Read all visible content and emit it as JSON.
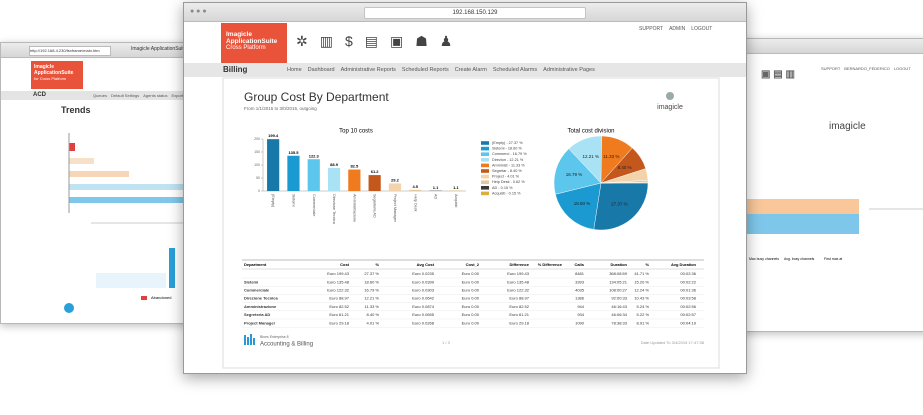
{
  "left_window": {
    "url": "http://192.168.4.230/fsxframe/main.htm",
    "tab": "Imagicle ApplicationSuite",
    "brand": "Imagicle ApplicationSuite",
    "brand_sub": "for Cross Platform",
    "section": "ACD",
    "nav": [
      "Queues",
      "Default Settings",
      "Agents status",
      "Exports"
    ],
    "title": "Trends",
    "legend": [
      "Abandoned"
    ]
  },
  "right_window": {
    "links": [
      "SUPPORT",
      "BERNARDO_FEDERICO",
      "LOGOUT"
    ],
    "logo": "imagicle",
    "table_headers": [
      "Max busy channels",
      "Avg. busy channels",
      "First max at"
    ]
  },
  "main_window": {
    "url": "192.168.150.129",
    "brand": "Imagicle ApplicationSuite",
    "brand_sub": "Cross Platform",
    "links": [
      "SUPPORT",
      "ADMIN",
      "LOGOUT"
    ],
    "section": "Billing",
    "nav": [
      "Home",
      "Dashboard",
      "Administrative Reports",
      "Scheduled Reports",
      "Create Alarm",
      "Scheduled Alarms",
      "Administrative Pages"
    ],
    "report": {
      "title": "Group Cost By Department",
      "subtitle": "From 1/1/2015 to 3/0/2015, outgoing",
      "logo": "imagicle",
      "bar_chart": {
        "type": "bar",
        "title": "Top 10 costs",
        "categories": [
          "(Empty)",
          "Sistemi",
          "Commerciale",
          "Direzione Tecnica",
          "Amministrazione",
          "Segreteria AD",
          "Project Manager",
          "Help Desk",
          "AD",
          "Acquisti"
        ],
        "values": [
          199.4,
          135.5,
          122.3,
          88.9,
          82.5,
          61.2,
          29.2,
          4.5,
          1.1,
          1.1
        ],
        "colors": [
          "#1878a8",
          "#1a9ad0",
          "#5cc6ec",
          "#a9e2f4",
          "#f07a1e",
          "#c4581c",
          "#f3d3ac",
          "#e6c7a0",
          "#3a3a3a",
          "#d9b040"
        ],
        "ylim": [
          0,
          200
        ],
        "yticks": [
          0,
          50,
          100,
          150,
          200
        ]
      },
      "pie_chart": {
        "type": "pie",
        "title": "Total cost division",
        "labels": [
          "(Empty) - 27.37 %",
          "Sistemi - 18.60 %",
          "Commerci - 16.79 %",
          "Direzion - 12.21 %",
          "Amminist - 11.33 %",
          "Segretar - 8.40 %",
          "Project - 4.01 %",
          "Help Desk - 0.62 %",
          "AD - 0.15 %",
          "Acquisti - 0.15 %"
        ],
        "values": [
          27.37,
          18.6,
          16.79,
          12.21,
          11.33,
          8.4,
          4.01,
          0.62,
          0.15,
          0.15
        ],
        "value_labels": [
          "27.37 %",
          "18.60 %",
          "16.79 %",
          "12.21 %",
          "11.33 %",
          "8.40 %",
          null,
          null,
          null,
          null
        ],
        "colors": [
          "#1878a8",
          "#1a9ad0",
          "#5cc6ec",
          "#a9e2f4",
          "#f07a1e",
          "#c4581c",
          "#f3d3ac",
          "#e6c7a0",
          "#3a3a3a",
          "#d9b040"
        ]
      },
      "table": {
        "columns": [
          "Department",
          "Cost",
          "%",
          "Avg Cost",
          "Cost_2",
          "Difference",
          "% Difference",
          "Calls",
          "Duration",
          "%",
          "Avg Duration"
        ],
        "rows": [
          [
            null,
            "Euro 199.43",
            "27.37 %",
            "Euro 0.0235",
            "Euro 0.00",
            "Euro 199.43",
            null,
            "8481",
            "368:08:59",
            "41.71 %",
            "00:02:36"
          ],
          [
            "Sistemi",
            "Euro 135.48",
            "18.60 %",
            "Euro 0.0399",
            "Euro 0.00",
            "Euro 135.48",
            null,
            "3393",
            "134:05:21",
            "15.20 %",
            "00:02:22"
          ],
          [
            "Commerciale",
            "Euro 122.32",
            "16.79 %",
            "Euro 0.0303",
            "Euro 0.00",
            "Euro 122.32",
            null,
            "4035",
            "108:00:27",
            "12.24 %",
            "00:01:36"
          ],
          [
            "Direzione Tecnica",
            "Euro 88.97",
            "12.21 %",
            "Euro 0.0642",
            "Euro 0.00",
            "Euro 88.97",
            null,
            "1386",
            "92:00:33",
            "10.43 %",
            "00:03:58"
          ],
          [
            "Amministrazione",
            "Euro 82.52",
            "11.33 %",
            "Euro 0.0874",
            "Euro 0.00",
            "Euro 82.52",
            null,
            "944",
            "46:16:43",
            "5.24 %",
            "00:02:56"
          ],
          [
            "Segreteria AD",
            "Euro 61.21",
            "8.40 %",
            "Euro 0.0655",
            "Euro 0.00",
            "Euro 61.21",
            null,
            "934",
            "46:06:34",
            "5.22 %",
            "00:02:57"
          ],
          [
            "Project Manager",
            "Euro 29.18",
            "4.01 %",
            "Euro 0.0268",
            "Euro 0.00",
            "Euro 29.18",
            null,
            "1090",
            "78:38:33",
            "8.91 %",
            "00:04:19"
          ]
        ]
      },
      "footer": {
        "product": "Blues Enterprise 8",
        "product_name": "Accounting & Billing",
        "page": "1 / 3",
        "updated": "Date Updated To 3/4/2015 17:47:38"
      }
    }
  }
}
